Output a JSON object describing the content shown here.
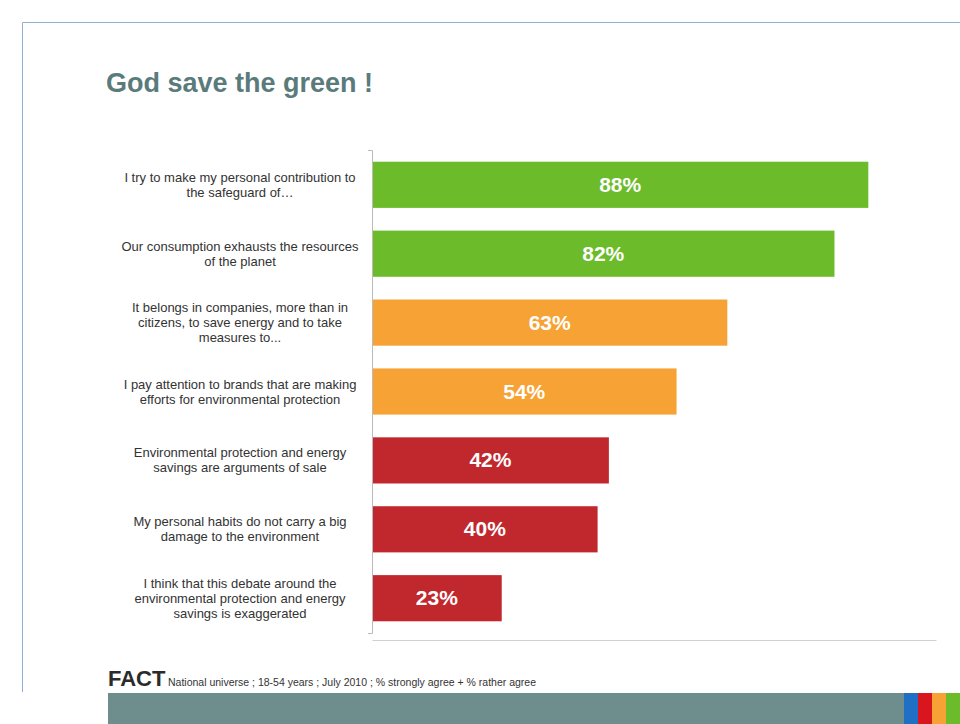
{
  "chart_data": {
    "type": "bar",
    "title": "God save the green !",
    "orientation": "horizontal",
    "categories": [
      "I try to make my personal contribution to the safeguard of…",
      "Our consumption exhausts the resources of the planet",
      "It belongs in companies, more than in citizens, to save energy and to take measures to...",
      "I pay attention to brands that are making efforts for environmental protection",
      "Environmental protection and energy savings are arguments of sale",
      "My personal habits do not carry a big damage to the environment",
      "I think that this debate around the environmental protection and energy savings is exaggerated"
    ],
    "values": [
      88,
      82,
      63,
      54,
      42,
      40,
      23
    ],
    "value_labels": [
      "88%",
      "82%",
      "63%",
      "54%",
      "42%",
      "40%",
      "23%"
    ],
    "colors": [
      "#6cbb2a",
      "#6cbb2a",
      "#f7a235",
      "#f7a235",
      "#c0282e",
      "#c0282e",
      "#c0282e"
    ],
    "data_labels": true,
    "tick_labels": "y",
    "xlim": [
      0,
      100
    ],
    "annotations": [
      "FACT",
      "National universe ; 18-54 years ; July 2010 ; % strongly agree + % rather agree"
    ]
  }
}
